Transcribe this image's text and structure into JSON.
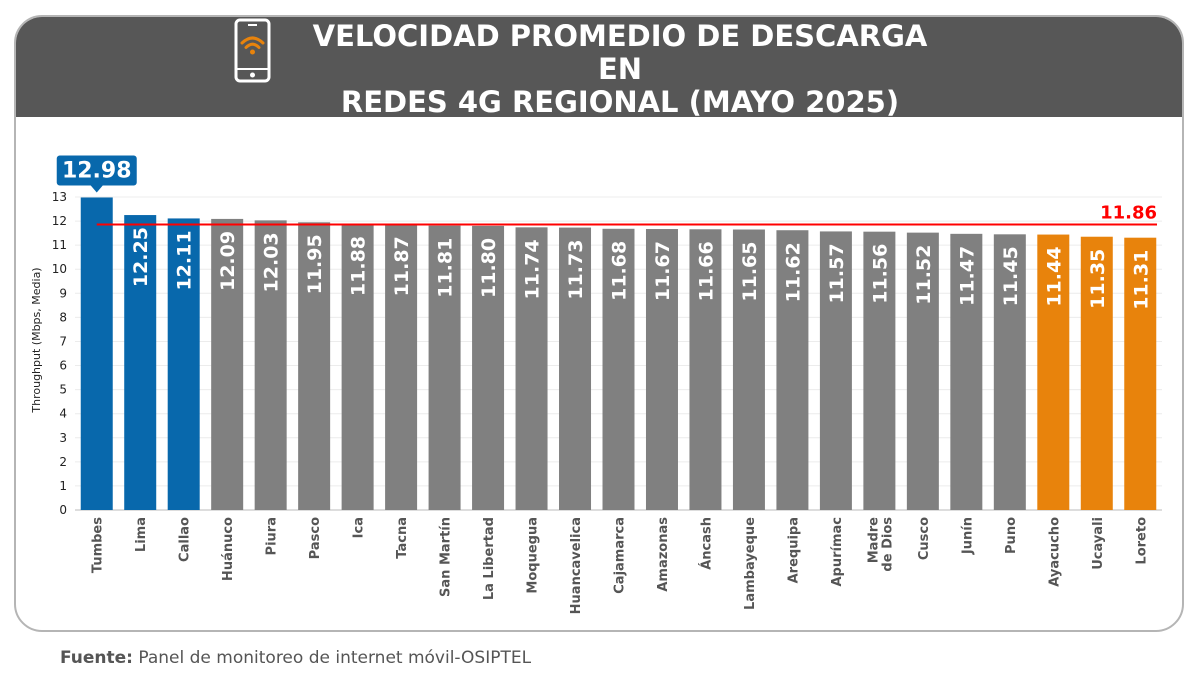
{
  "header": {
    "title_line1": "VELOCIDAD PROMEDIO DE DESCARGA EN",
    "title_line2": "REDES 4G REGIONAL (MAYO 2025)",
    "icon": "smartphone-wifi-icon"
  },
  "source": {
    "label": "Fuente:",
    "text": "Panel de monitoreo de internet móvil-OSIPTEL"
  },
  "colors": {
    "top": "#0868ac",
    "middle": "#808080",
    "bottom": "#e8830c",
    "average": "#ff0000",
    "header": "#575757"
  },
  "chart_data": {
    "type": "bar",
    "title": "VELOCIDAD PROMEDIO DE DESCARGA EN REDES 4G REGIONAL (MAYO 2025)",
    "ylabel": "Throughput (Mbps, Media)",
    "xlabel": "",
    "ylim": [
      0,
      13
    ],
    "yticks": [
      0,
      1,
      2,
      3,
      4,
      5,
      6,
      7,
      8,
      9,
      10,
      11,
      12,
      13
    ],
    "grid": true,
    "categories": [
      "Tumbes",
      "Lima",
      "Callao",
      "Huánuco",
      "Piura",
      "Pasco",
      "Ica",
      "Tacna",
      "San Martín",
      "La Libertad",
      "Moquegua",
      "Huancavelica",
      "Cajamarca",
      "Amazonas",
      "Áncash",
      "Lambayeque",
      "Arequipa",
      "Apurímac",
      "Madre de Dios",
      "Cusco",
      "Junín",
      "Puno",
      "Ayacucho",
      "Ucayali",
      "Loreto"
    ],
    "values": [
      12.98,
      12.25,
      12.11,
      12.09,
      12.03,
      11.95,
      11.88,
      11.87,
      11.81,
      11.8,
      11.74,
      11.73,
      11.68,
      11.67,
      11.66,
      11.65,
      11.62,
      11.57,
      11.56,
      11.52,
      11.47,
      11.45,
      11.44,
      11.35,
      11.31
    ],
    "value_labels": [
      "12.98",
      "12.25",
      "12.11",
      "12.09",
      "12.03",
      "11.95",
      "11.88",
      "11.87",
      "11.81",
      "11.80",
      "11.74",
      "11.73",
      "11.68",
      "11.67",
      "11.66",
      "11.65",
      "11.62",
      "11.57",
      "11.56",
      "11.52",
      "11.47",
      "11.45",
      "11.44",
      "11.35",
      "11.31"
    ],
    "bar_groups": [
      "top",
      "top",
      "top",
      "middle",
      "middle",
      "middle",
      "middle",
      "middle",
      "middle",
      "middle",
      "middle",
      "middle",
      "middle",
      "middle",
      "middle",
      "middle",
      "middle",
      "middle",
      "middle",
      "middle",
      "middle",
      "middle",
      "bottom",
      "bottom",
      "bottom"
    ],
    "average": {
      "value": 11.86,
      "label": "11.86"
    }
  }
}
